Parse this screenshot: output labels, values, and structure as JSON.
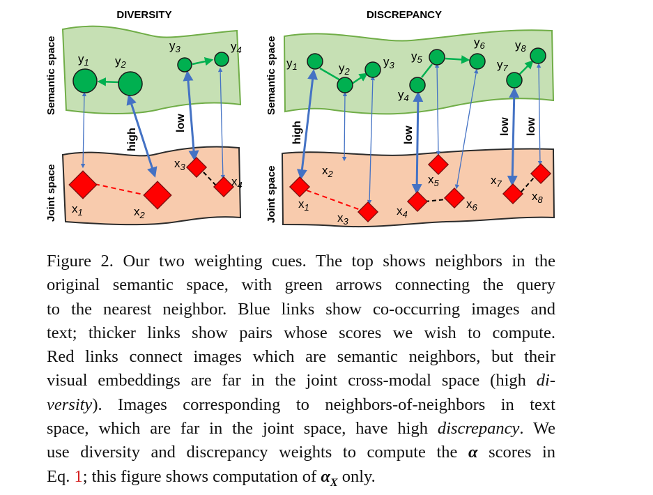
{
  "figure": {
    "panels": [
      {
        "title": "DIVERSITY",
        "semantic_label": "Semantic space",
        "joint_label": "Joint space",
        "semantic_nodes": [
          {
            "id": "y1",
            "name": "y",
            "sub": "1"
          },
          {
            "id": "y2",
            "name": "y",
            "sub": "2"
          },
          {
            "id": "y3",
            "name": "y",
            "sub": "3"
          },
          {
            "id": "y4",
            "name": "y",
            "sub": "4"
          }
        ],
        "joint_nodes": [
          {
            "id": "x1",
            "name": "x",
            "sub": "1"
          },
          {
            "id": "x2",
            "name": "x",
            "sub": "2"
          },
          {
            "id": "x3",
            "name": "x",
            "sub": "3"
          },
          {
            "id": "x4",
            "name": "x",
            "sub": "4"
          }
        ],
        "link_labels": {
          "high": "high",
          "low": "low"
        }
      },
      {
        "title": "DISCREPANCY",
        "semantic_label": "Semantic space",
        "joint_label": "Joint space",
        "semantic_nodes": [
          {
            "id": "y1",
            "name": "y",
            "sub": "1"
          },
          {
            "id": "y2",
            "name": "y",
            "sub": "2"
          },
          {
            "id": "y3",
            "name": "y",
            "sub": "3"
          },
          {
            "id": "y4",
            "name": "y",
            "sub": "4"
          },
          {
            "id": "y5",
            "name": "y",
            "sub": "5"
          },
          {
            "id": "y6",
            "name": "y",
            "sub": "6"
          },
          {
            "id": "y7",
            "name": "y",
            "sub": "7"
          },
          {
            "id": "y8",
            "name": "y",
            "sub": "8"
          }
        ],
        "joint_nodes": [
          {
            "id": "x1",
            "name": "x",
            "sub": "1"
          },
          {
            "id": "x2",
            "name": "x",
            "sub": "2"
          },
          {
            "id": "x3",
            "name": "x",
            "sub": "3"
          },
          {
            "id": "x4",
            "name": "x",
            "sub": "4"
          },
          {
            "id": "x5",
            "name": "x",
            "sub": "5"
          },
          {
            "id": "x6",
            "name": "x",
            "sub": "6"
          },
          {
            "id": "x7",
            "name": "x",
            "sub": "7"
          },
          {
            "id": "x8",
            "name": "x",
            "sub": "8"
          }
        ],
        "link_labels": {
          "high": "high",
          "low1": "low",
          "low2": "low",
          "low3": "low"
        }
      }
    ],
    "colors": {
      "semantic_fill": "#c6e0b4",
      "semantic_stroke": "#70ad47",
      "joint_fill": "#f8cbad",
      "joint_stroke": "#2b2b2b",
      "node_green": "#00b050",
      "node_red": "#ff0000",
      "blue_link": "#4472c4",
      "red_link": "#ff0000",
      "green_arrow": "#00b050"
    }
  },
  "caption": {
    "l1": "Figure 2. Our two weighting cues. The top shows neighbors in the",
    "l2": "original semantic space, with green arrows connecting the query",
    "l3": "to the nearest neighbor. Blue links show co-occurring images and",
    "l4": "text; thicker links show pairs whose scores we wish to compute.",
    "l5": "Red links connect images which are semantic neighbors, but their",
    "l6": "visual embeddings are far in the joint cross-modal space (high",
    "l6_em": "di-",
    "l7_em": "versity",
    "l7": "). Images corresponding to neighbors-of-neighbors in text",
    "l8a": "space, which are far in the joint space, have high",
    "l8_em": "discrepancy",
    "l8b": ". We",
    "l9a": "use diversity and discrepancy weights to compute the",
    "l9_sym": "α",
    "l9b": " scores in",
    "l10a": "Eq.",
    "l10_ref": "1",
    "l10b": "; this figure shows computation of",
    "l10_sym": "α",
    "l10_sub": "X",
    "l10c": " only."
  }
}
